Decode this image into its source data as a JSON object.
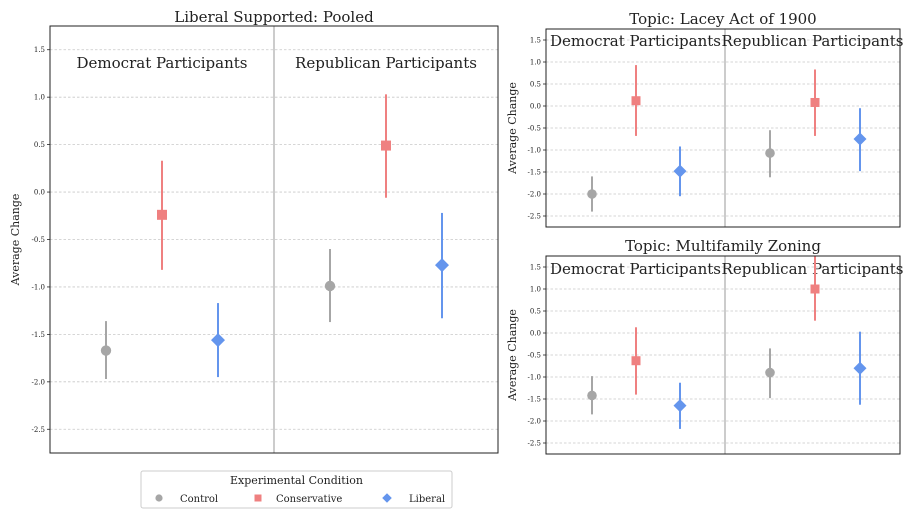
{
  "colors": {
    "Control": "#a6a6a6",
    "Conservative": "#ef8080",
    "Liberal": "#6495ed",
    "divider": "#cccccc",
    "grid": "#c8c8c8"
  },
  "legend": {
    "title": "Experimental Condition",
    "entries": [
      {
        "label": "Control",
        "marker": "circle"
      },
      {
        "label": "Conservative",
        "marker": "square"
      },
      {
        "label": "Liberal",
        "marker": "diamond"
      }
    ]
  },
  "chart_data": [
    {
      "type": "point-errorbar",
      "title": "Liberal Supported: Pooled",
      "ylabel": "Average Change",
      "ylim": [
        -2.75,
        1.75
      ],
      "yticks": [
        "1.5",
        "1.0",
        "0.5",
        "0.0",
        "-0.5",
        "-1.0",
        "-1.5",
        "-2.0",
        "-2.5"
      ],
      "grid": true,
      "groups": [
        "Democrat Participants",
        "Republican Participants"
      ],
      "series": [
        {
          "name": "Control",
          "values": [
            {
              "y": -1.67,
              "lo": -1.97,
              "hi": -1.36
            },
            {
              "y": -0.99,
              "lo": -1.37,
              "hi": -0.6
            }
          ]
        },
        {
          "name": "Conservative",
          "values": [
            {
              "y": -0.24,
              "lo": -0.82,
              "hi": 0.33
            },
            {
              "y": 0.49,
              "lo": -0.06,
              "hi": 1.03
            }
          ]
        },
        {
          "name": "Liberal",
          "values": [
            {
              "y": -1.56,
              "lo": -1.95,
              "hi": -1.17
            },
            {
              "y": -0.77,
              "lo": -1.33,
              "hi": -0.22
            }
          ]
        }
      ]
    },
    {
      "type": "point-errorbar",
      "title": "Topic: Lacey Act of 1900",
      "ylabel": "Average Change",
      "ylim": [
        -2.75,
        1.75
      ],
      "yticks": [
        "1.5",
        "1.0",
        "0.5",
        "0.0",
        "-0.5",
        "-1.0",
        "-1.5",
        "-2.0",
        "-2.5"
      ],
      "grid": true,
      "groups": [
        "Democrat Participants",
        "Republican Participants"
      ],
      "series": [
        {
          "name": "Control",
          "values": [
            {
              "y": -2.0,
              "lo": -2.4,
              "hi": -1.6
            },
            {
              "y": -1.07,
              "lo": -1.62,
              "hi": -0.55
            }
          ]
        },
        {
          "name": "Conservative",
          "values": [
            {
              "y": 0.12,
              "lo": -0.68,
              "hi": 0.93
            },
            {
              "y": 0.08,
              "lo": -0.68,
              "hi": 0.83
            }
          ]
        },
        {
          "name": "Liberal",
          "values": [
            {
              "y": -1.48,
              "lo": -2.05,
              "hi": -0.92
            },
            {
              "y": -0.75,
              "lo": -1.48,
              "hi": -0.05
            }
          ]
        }
      ]
    },
    {
      "type": "point-errorbar",
      "title": "Topic: Multifamily Zoning",
      "ylabel": "Average Change",
      "ylim": [
        -2.75,
        1.75
      ],
      "yticks": [
        "1.5",
        "1.0",
        "0.5",
        "0.0",
        "-0.5",
        "-1.0",
        "-1.5",
        "-2.0",
        "-2.5"
      ],
      "grid": true,
      "groups": [
        "Democrat Participants",
        "Republican Participants"
      ],
      "series": [
        {
          "name": "Control",
          "values": [
            {
              "y": -1.42,
              "lo": -1.85,
              "hi": -0.98
            },
            {
              "y": -0.9,
              "lo": -1.48,
              "hi": -0.35
            }
          ]
        },
        {
          "name": "Conservative",
          "values": [
            {
              "y": -0.63,
              "lo": -1.4,
              "hi": 0.13
            },
            {
              "y": 1.0,
              "lo": 0.28,
              "hi": 1.75
            }
          ]
        },
        {
          "name": "Liberal",
          "values": [
            {
              "y": -1.65,
              "lo": -2.18,
              "hi": -1.13
            },
            {
              "y": -0.8,
              "lo": -1.63,
              "hi": 0.03
            }
          ]
        }
      ]
    }
  ]
}
